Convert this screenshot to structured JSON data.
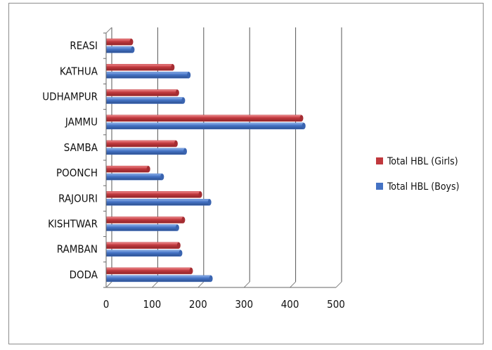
{
  "chart_data": {
    "type": "bar",
    "orientation": "horizontal",
    "categories": [
      "REASI",
      "KATHUA",
      "UDHAMPUR",
      "JAMMU",
      "SAMBA",
      "POONCH",
      "RAJOURI",
      "KISHTWAR",
      "RAMBAN",
      "DODA"
    ],
    "series": [
      {
        "name": "Total HBL (Girls)",
        "color": "#c0383d",
        "values": [
          55,
          145,
          155,
          425,
          152,
          92,
          205,
          168,
          158,
          185
        ]
      },
      {
        "name": "Total HBL (Boys)",
        "color": "#4472c4",
        "values": [
          58,
          180,
          168,
          430,
          172,
          122,
          225,
          155,
          162,
          228
        ]
      }
    ],
    "xlim": [
      0,
      500
    ],
    "x_ticks": [
      "0",
      "100",
      "200",
      "300",
      "400",
      "500"
    ],
    "grid": true,
    "legend_position": "right",
    "title": "",
    "xlabel": "",
    "ylabel": ""
  }
}
